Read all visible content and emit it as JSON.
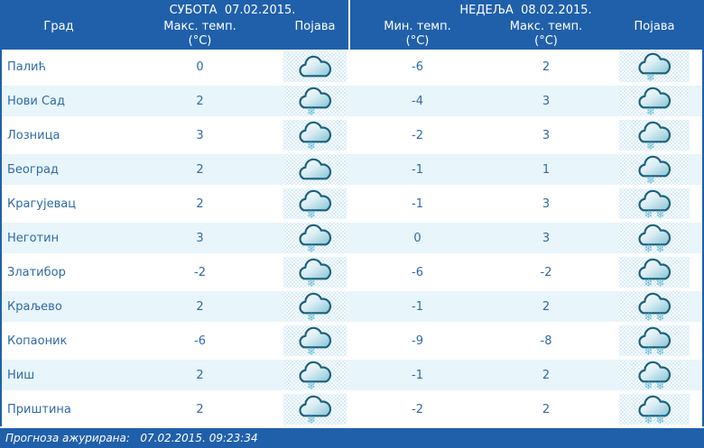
{
  "header": {
    "city_label": "Град",
    "saturday": {
      "title": "СУБОТА  07.02.2015.",
      "max_label": "Макс. темп.",
      "unit": "(°C)",
      "phenomenon_label": "Појава"
    },
    "sunday": {
      "title": "НЕДЕЉА  08.02.2015.",
      "min_label": "Мин. темп.",
      "min_unit": "(°C)",
      "max_label": "Макс. темп.",
      "max_unit": "(°C)",
      "phenomenon_label": "Појава"
    }
  },
  "rows": [
    {
      "city": "Палић",
      "sat_max": "0",
      "sat_icon": "cloudy",
      "sun_min": "-6",
      "sun_max": "2",
      "sun_icon": "snow"
    },
    {
      "city": "Нови Сад",
      "sat_max": "2",
      "sat_icon": "snow",
      "sun_min": "-4",
      "sun_max": "3",
      "sun_icon": "snow"
    },
    {
      "city": "Лозница",
      "sat_max": "3",
      "sat_icon": "snow",
      "sun_min": "-2",
      "sun_max": "3",
      "sun_icon": "snow"
    },
    {
      "city": "Београд",
      "sat_max": "2",
      "sat_icon": "cloudy",
      "sun_min": "-1",
      "sun_max": "1",
      "sun_icon": "snow"
    },
    {
      "city": "Крагујевац",
      "sat_max": "2",
      "sat_icon": "snow",
      "sun_min": "-1",
      "sun_max": "3",
      "sun_icon": "heavy-snow"
    },
    {
      "city": "Неготин",
      "sat_max": "3",
      "sat_icon": "snow",
      "sun_min": "0",
      "sun_max": "3",
      "sun_icon": "heavy-snow"
    },
    {
      "city": "Златибор",
      "sat_max": "-2",
      "sat_icon": "snow",
      "sun_min": "-6",
      "sun_max": "-2",
      "sun_icon": "heavy-snow"
    },
    {
      "city": "Краљево",
      "sat_max": "2",
      "sat_icon": "snow",
      "sun_min": "-1",
      "sun_max": "2",
      "sun_icon": "heavy-snow"
    },
    {
      "city": "Копаоник",
      "sat_max": "-6",
      "sat_icon": "snow",
      "sun_min": "-9",
      "sun_max": "-8",
      "sun_icon": "heavy-snow"
    },
    {
      "city": "Ниш",
      "sat_max": "2",
      "sat_icon": "snow",
      "sun_min": "-1",
      "sun_max": "2",
      "sun_icon": "heavy-snow"
    },
    {
      "city": "Приштина",
      "sat_max": "2",
      "sat_icon": "snow",
      "sun_min": "-2",
      "sun_max": "2",
      "sun_icon": "heavy-snow"
    }
  ],
  "footer": {
    "text": "Прогноза ажурирана:   07.02.2015. 09:23:34"
  },
  "colors": {
    "header_bg": "#2060ab",
    "footer_bg": "#2060ab",
    "header_text": "#ffffff",
    "row_alt": "#e8f5fa",
    "text_color": "#2f6ba6",
    "pattern_dot": "#cfe7f3",
    "flake_color": "#6fbdd8",
    "icon_outline": "#1a617e",
    "icon_fill": "#85c2d4"
  }
}
